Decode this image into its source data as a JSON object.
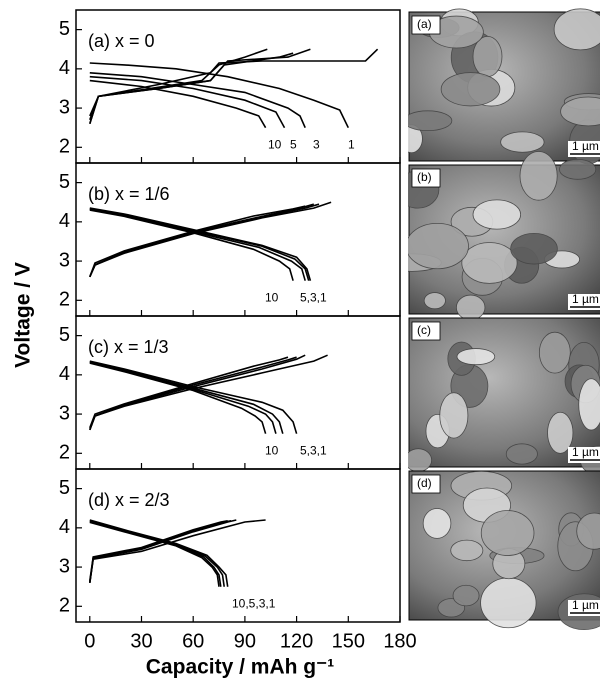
{
  "ylabel": "Voltage / V",
  "xlabel": "Capacity / mAh g⁻¹",
  "images": [
    {
      "label": "(a)",
      "scale": "1 µm"
    },
    {
      "label": "(b)",
      "scale": "1 µm"
    },
    {
      "label": "(c)",
      "scale": "1 µm"
    },
    {
      "label": "(d)",
      "scale": "1 µm"
    }
  ],
  "chart_data": [
    {
      "type": "line",
      "title": "(a) x = 0",
      "xlim": [
        -8,
        180
      ],
      "ylim": [
        1.6,
        5.5
      ],
      "yticks": [
        2,
        3,
        4,
        5
      ],
      "annotations": [
        "10",
        "5",
        "3",
        "1"
      ],
      "series": [
        {
          "color": "#000",
          "x": [
            0,
            20,
            50,
            80,
            110,
            130,
            145,
            150
          ],
          "values": [
            4.15,
            4.1,
            4.0,
            3.8,
            3.5,
            3.2,
            2.95,
            2.5
          ]
        },
        {
          "color": "#000",
          "x": [
            0,
            30,
            60,
            90,
            115,
            122,
            125
          ],
          "values": [
            3.9,
            3.8,
            3.6,
            3.4,
            3.0,
            2.8,
            2.5
          ]
        },
        {
          "color": "#000",
          "x": [
            0,
            30,
            60,
            90,
            108,
            113
          ],
          "values": [
            3.8,
            3.7,
            3.5,
            3.2,
            2.9,
            2.5
          ]
        },
        {
          "color": "#000",
          "x": [
            0,
            30,
            60,
            85,
            98,
            102
          ],
          "values": [
            3.7,
            3.55,
            3.3,
            3.0,
            2.8,
            2.5
          ]
        },
        {
          "color": "#000",
          "x": [
            0,
            5,
            40,
            70,
            75,
            100,
            160,
            167
          ],
          "values": [
            2.6,
            3.3,
            3.6,
            3.9,
            4.15,
            4.2,
            4.2,
            4.5
          ]
        },
        {
          "color": "#000",
          "x": [
            0,
            5,
            40,
            70,
            80,
            115,
            128
          ],
          "values": [
            2.6,
            3.3,
            3.5,
            3.7,
            4.2,
            4.3,
            4.5
          ]
        },
        {
          "color": "#000",
          "x": [
            0,
            5,
            40,
            70,
            78,
            110,
            118
          ],
          "values": [
            2.7,
            3.3,
            3.5,
            3.7,
            4.1,
            4.3,
            4.4
          ]
        },
        {
          "color": "#000",
          "x": [
            0,
            5,
            35,
            65,
            75,
            90,
            103
          ],
          "values": [
            2.8,
            3.3,
            3.5,
            3.7,
            4.1,
            4.3,
            4.5
          ]
        }
      ]
    },
    {
      "type": "line",
      "title": "(b) x = 1/6",
      "xlim": [
        -8,
        180
      ],
      "ylim": [
        1.6,
        5.5
      ],
      "yticks": [
        2,
        3,
        4,
        5
      ],
      "annotations": [
        "10",
        "5,3,1"
      ],
      "series": [
        {
          "color": "#000",
          "x": [
            0,
            20,
            60,
            100,
            120,
            126,
            128
          ],
          "values": [
            4.35,
            4.2,
            3.8,
            3.4,
            3.1,
            2.8,
            2.5
          ]
        },
        {
          "color": "#000",
          "x": [
            0,
            20,
            60,
            100,
            119,
            125,
            127
          ],
          "values": [
            4.33,
            4.18,
            3.78,
            3.38,
            3.05,
            2.8,
            2.5
          ]
        },
        {
          "color": "#000",
          "x": [
            0,
            20,
            60,
            98,
            117,
            123,
            125
          ],
          "values": [
            4.32,
            4.16,
            3.75,
            3.35,
            3.0,
            2.8,
            2.5
          ]
        },
        {
          "color": "#000",
          "x": [
            0,
            20,
            60,
            95,
            110,
            116,
            118
          ],
          "values": [
            4.3,
            4.14,
            3.72,
            3.3,
            3.0,
            2.8,
            2.5
          ]
        },
        {
          "color": "#000",
          "x": [
            0,
            3,
            20,
            60,
            100,
            130,
            140
          ],
          "values": [
            2.6,
            2.9,
            3.2,
            3.7,
            4.1,
            4.35,
            4.5
          ]
        },
        {
          "color": "#000",
          "x": [
            0,
            3,
            20,
            60,
            100,
            125,
            133
          ],
          "values": [
            2.6,
            2.9,
            3.22,
            3.72,
            4.12,
            4.35,
            4.45
          ]
        },
        {
          "color": "#000",
          "x": [
            0,
            3,
            20,
            60,
            100,
            122,
            130
          ],
          "values": [
            2.6,
            2.9,
            3.24,
            3.74,
            4.14,
            4.35,
            4.45
          ]
        },
        {
          "color": "#000",
          "x": [
            0,
            3,
            20,
            60,
            95,
            118,
            125
          ],
          "values": [
            2.6,
            2.95,
            3.26,
            3.76,
            4.15,
            4.33,
            4.4
          ]
        }
      ]
    },
    {
      "type": "line",
      "title": "(c) x = 1/3",
      "xlim": [
        -8,
        180
      ],
      "ylim": [
        1.6,
        5.5
      ],
      "yticks": [
        2,
        3,
        4,
        5
      ],
      "annotations": [
        "10",
        "5,3,1"
      ],
      "series": [
        {
          "color": "#000",
          "x": [
            0,
            20,
            60,
            100,
            112,
            118,
            120
          ],
          "values": [
            4.35,
            4.15,
            3.7,
            3.3,
            3.1,
            2.8,
            2.5
          ]
        },
        {
          "color": "#000",
          "x": [
            0,
            20,
            60,
            95,
            106,
            110,
            112
          ],
          "values": [
            4.33,
            4.12,
            3.66,
            3.25,
            3.0,
            2.8,
            2.5
          ]
        },
        {
          "color": "#000",
          "x": [
            0,
            20,
            60,
            92,
            102,
            106,
            108
          ],
          "values": [
            4.32,
            4.1,
            3.63,
            3.2,
            3.0,
            2.8,
            2.5
          ]
        },
        {
          "color": "#000",
          "x": [
            0,
            20,
            60,
            88,
            96,
            100,
            102
          ],
          "values": [
            4.3,
            4.08,
            3.6,
            3.15,
            2.95,
            2.8,
            2.5
          ]
        },
        {
          "color": "#000",
          "x": [
            0,
            3,
            20,
            60,
            100,
            130,
            138
          ],
          "values": [
            2.6,
            2.95,
            3.2,
            3.65,
            4.05,
            4.35,
            4.5
          ]
        },
        {
          "color": "#000",
          "x": [
            0,
            3,
            20,
            60,
            100,
            120,
            125
          ],
          "values": [
            2.6,
            2.95,
            3.22,
            3.7,
            4.15,
            4.4,
            4.5
          ]
        },
        {
          "color": "#000",
          "x": [
            0,
            3,
            20,
            60,
            100,
            115,
            120
          ],
          "values": [
            2.6,
            2.95,
            3.24,
            3.74,
            4.2,
            4.38,
            4.45
          ]
        },
        {
          "color": "#000",
          "x": [
            0,
            3,
            20,
            60,
            95,
            110,
            115
          ],
          "values": [
            2.65,
            3.0,
            3.26,
            3.78,
            4.22,
            4.38,
            4.45
          ]
        }
      ]
    },
    {
      "type": "line",
      "title": "(d) x = 2/3",
      "xlim": [
        -8,
        180
      ],
      "ylim": [
        1.6,
        5.5
      ],
      "xticks": [
        0,
        30,
        60,
        90,
        120,
        150,
        180
      ],
      "yticks": [
        2,
        3,
        4,
        5
      ],
      "annotations": [
        "10,5,3,1"
      ],
      "series": [
        {
          "color": "#000",
          "x": [
            0,
            20,
            50,
            68,
            75,
            79,
            80
          ],
          "values": [
            4.2,
            3.95,
            3.6,
            3.3,
            3.0,
            2.8,
            2.5
          ]
        },
        {
          "color": "#000",
          "x": [
            0,
            20,
            50,
            67,
            74,
            77,
            78
          ],
          "values": [
            4.18,
            3.93,
            3.58,
            3.28,
            3.0,
            2.8,
            2.5
          ]
        },
        {
          "color": "#000",
          "x": [
            0,
            20,
            50,
            66,
            72,
            75,
            76
          ],
          "values": [
            4.16,
            3.91,
            3.56,
            3.26,
            3.0,
            2.8,
            2.5
          ]
        },
        {
          "color": "#000",
          "x": [
            0,
            20,
            50,
            65,
            71,
            74,
            75
          ],
          "values": [
            4.14,
            3.9,
            3.54,
            3.24,
            3.0,
            2.8,
            2.5
          ]
        },
        {
          "color": "#000",
          "x": [
            0,
            2,
            30,
            60,
            90,
            102
          ],
          "values": [
            2.6,
            3.2,
            3.4,
            3.8,
            4.15,
            4.2
          ]
        },
        {
          "color": "#000",
          "x": [
            0,
            2,
            30,
            60,
            80,
            85
          ],
          "values": [
            2.6,
            3.22,
            3.45,
            3.9,
            4.15,
            4.2
          ]
        },
        {
          "color": "#000",
          "x": [
            0,
            2,
            30,
            60,
            78,
            82
          ],
          "values": [
            2.6,
            3.24,
            3.48,
            3.93,
            4.15,
            4.18
          ]
        },
        {
          "color": "#000",
          "x": [
            0,
            2,
            30,
            60,
            76,
            80
          ],
          "values": [
            2.65,
            3.26,
            3.5,
            3.95,
            4.15,
            4.18
          ]
        }
      ]
    }
  ]
}
